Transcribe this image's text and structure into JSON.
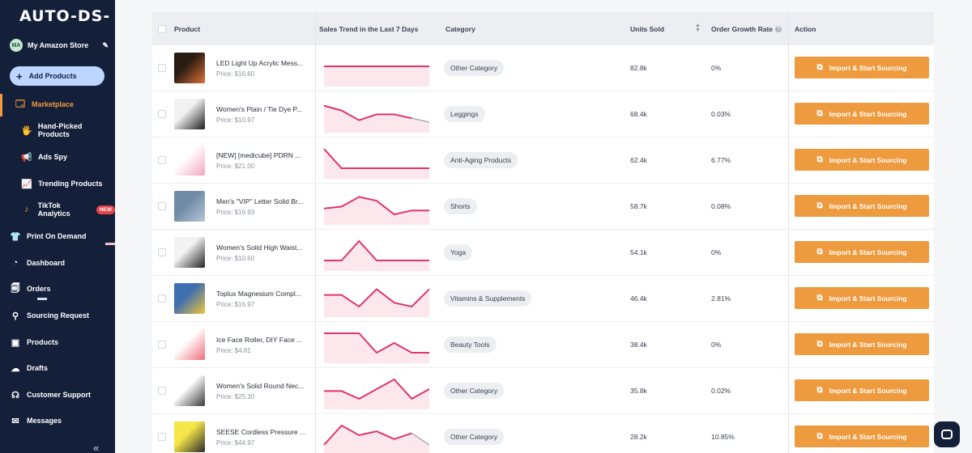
{
  "app": {
    "logo": "AUTO-DS-"
  },
  "store": {
    "initials": "MA",
    "name": "My Amazon Store"
  },
  "add_products_label": "Add Products",
  "nav": [
    {
      "key": "marketplace",
      "label": "Marketplace",
      "icon": "shop-icon"
    },
    {
      "key": "hand-picked",
      "label": "Hand-Picked Products",
      "icon": "hand-icon"
    },
    {
      "key": "ads-spy",
      "label": "Ads Spy",
      "icon": "megaphone-icon"
    },
    {
      "key": "trending",
      "label": "Trending Products",
      "icon": "trend-icon"
    },
    {
      "key": "tiktok",
      "label": "TikTok Analytics",
      "icon": "tiktok-icon",
      "badge": "NEW"
    },
    {
      "key": "pod",
      "label": "Print On Demand",
      "icon": "shirt-icon"
    },
    {
      "key": "dashboard",
      "label": "Dashboard",
      "icon": "gauge-icon"
    },
    {
      "key": "orders",
      "label": "Orders",
      "icon": "clipboard-icon"
    },
    {
      "key": "sourcing",
      "label": "Sourcing Request",
      "icon": "person-search-icon"
    },
    {
      "key": "products",
      "label": "Products",
      "icon": "box-icon"
    },
    {
      "key": "drafts",
      "label": "Drafts",
      "icon": "cloud-upload-icon"
    },
    {
      "key": "support",
      "label": "Customer Support",
      "icon": "headset-icon"
    },
    {
      "key": "messages",
      "label": "Messages",
      "icon": "mail-icon"
    }
  ],
  "collapse_glyph": "«",
  "columns": {
    "product": "Product",
    "trend": "Sales Trend in the Last 7 Days",
    "category": "Category",
    "units": "Units Sold",
    "growth": "Order Growth Rate",
    "action": "Action"
  },
  "colors": {
    "accent": "#EE9B3F",
    "sidebar": "#14203A",
    "trend_line": "#E0356A",
    "trend_fill": "#FBE1E8"
  },
  "rows": [
    {
      "name": "LED Light Up Acrylic Mess...",
      "price": "Price: $16.60",
      "category": "Other Category",
      "units": "82.8k",
      "growth": "0%",
      "action": "Import & Start Sourcing",
      "trend": [
        0.5,
        0.5,
        0.5,
        0.5,
        0.5,
        0.5,
        0.5
      ],
      "trend_gray_last": false,
      "thumb": [
        "#2a1c10",
        "#e0703a"
      ]
    },
    {
      "name": "Women's Plain / Tie Dye P...",
      "price": "Price: $10.97",
      "category": "Leggings",
      "units": "68.4k",
      "growth": "0.03%",
      "action": "Import & Start Sourcing",
      "trend": [
        0.85,
        0.6,
        0.1,
        0.4,
        0.4,
        0.2,
        0.0
      ],
      "trend_gray_last": true,
      "thumb": [
        "#f2f2f2",
        "#1b1b1b"
      ]
    },
    {
      "name": "[NEW] [medicube] PDRN ...",
      "price": "Price: $21.00",
      "category": "Anti-Aging Products",
      "units": "62.4k",
      "growth": "6.77%",
      "action": "Import & Start Sourcing",
      "trend": [
        1.0,
        0.0,
        0.0,
        0.0,
        0.0,
        0.0,
        0.0
      ],
      "trend_gray_last": false,
      "thumb": [
        "#fff",
        "#f4a7c0"
      ]
    },
    {
      "name": "Men's \"VIP\" Letter Solid Br...",
      "price": "Price: $16.93",
      "category": "Shorts",
      "units": "58.7k",
      "growth": "0.08%",
      "action": "Import & Start Sourcing",
      "trend": [
        0.3,
        0.4,
        0.9,
        0.7,
        0.0,
        0.2,
        0.2
      ],
      "trend_gray_last": false,
      "thumb": [
        "#6e8aa5",
        "#b5c6d6"
      ]
    },
    {
      "name": "Women's Solid High Waist...",
      "price": "Price: $10.60",
      "category": "Yoga",
      "units": "54.1k",
      "growth": "0%",
      "action": "Import & Start Sourcing",
      "trend": [
        0.0,
        0.0,
        1.0,
        0.0,
        0.0,
        0.0,
        0.0
      ],
      "trend_gray_last": false,
      "thumb": [
        "#f3f3f3",
        "#222"
      ]
    },
    {
      "name": "Toplux Magnesium Compl...",
      "price": "Price: $16.97",
      "category": "Vitamins & Supplements",
      "units": "46.4k",
      "growth": "2.81%",
      "action": "Import & Start Sourcing",
      "trend": [
        0.6,
        0.6,
        0.0,
        0.9,
        0.2,
        0.0,
        0.9
      ],
      "trend_gray_last": false,
      "thumb": [
        "#3e6fb0",
        "#f0c43c"
      ]
    },
    {
      "name": "Ice Face Roller, DIY Face ...",
      "price": "Price: $4.81",
      "category": "Beauty Tools",
      "units": "38.4k",
      "growth": "0%",
      "action": "Import & Start Sourcing",
      "trend": [
        1.0,
        1.0,
        1.0,
        0.0,
        0.5,
        0.0,
        0.0
      ],
      "trend_gray_last": false,
      "thumb": [
        "#fff",
        "#ef6f7a"
      ]
    },
    {
      "name": "Women's Solid Round Nec...",
      "price": "Price: $25.30",
      "category": "Other Category",
      "units": "35.8k",
      "growth": "0.02%",
      "action": "Import & Start Sourcing",
      "trend": [
        0.4,
        0.4,
        0.0,
        0.5,
        1.0,
        0.0,
        0.5
      ],
      "trend_gray_last": false,
      "thumb": [
        "#fff",
        "#3a3a3a"
      ]
    },
    {
      "name": "SEESE Cordless Pressure ...",
      "price": "Price: $44.97",
      "category": "Other Category",
      "units": "28.2k",
      "growth": "10.85%",
      "action": "Import & Start Sourcing",
      "trend": [
        0.0,
        1.0,
        0.5,
        0.7,
        0.3,
        0.6,
        0.0
      ],
      "trend_gray_last": true,
      "thumb": [
        "#f6e64a",
        "#2a2a2a"
      ]
    }
  ]
}
